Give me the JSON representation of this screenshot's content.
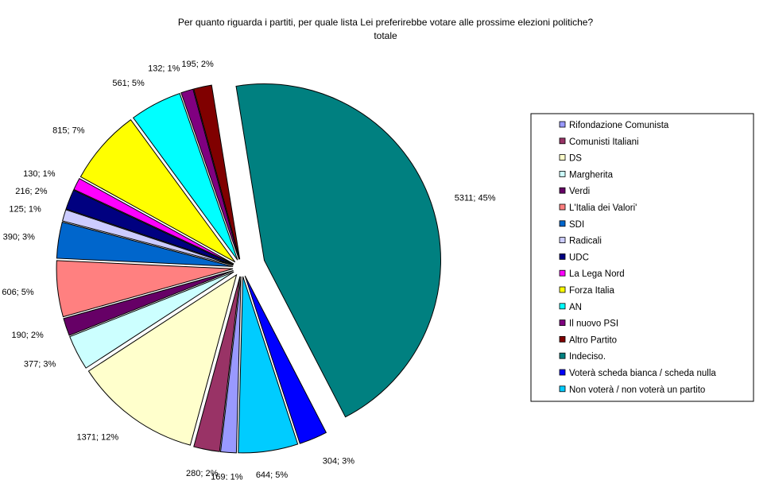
{
  "chart_data": {
    "type": "pie",
    "title": "Per quanto riguarda i partiti, per quale lista Lei preferirebbe votare alle prossime elezioni politiche?",
    "subtitle": "totale",
    "legend_position": "right",
    "slices": [
      {
        "name": "Rifondazione Comunista",
        "value": 169,
        "label": "169; 1%",
        "color": "#9999ff"
      },
      {
        "name": "Comunisti Italiani",
        "value": 280,
        "label": "280; 2%",
        "color": "#993366"
      },
      {
        "name": "DS",
        "value": 1371,
        "label": "1371; 12%",
        "color": "#ffffcc"
      },
      {
        "name": "Margherita",
        "value": 377,
        "label": "377; 3%",
        "color": "#ccffff"
      },
      {
        "name": "Verdi",
        "value": 190,
        "label": "190; 2%",
        "color": "#660066"
      },
      {
        "name": "L'Italia dei Valori'",
        "value": 606,
        "label": "606; 5%",
        "color": "#ff8080"
      },
      {
        "name": "SDI",
        "value": 390,
        "label": "390; 3%",
        "color": "#0066cc"
      },
      {
        "name": "Radicali",
        "value": 125,
        "label": "125; 1%",
        "color": "#ccccff"
      },
      {
        "name": "UDC",
        "value": 216,
        "label": "216; 2%",
        "color": "#000080"
      },
      {
        "name": "La Lega Nord",
        "value": 130,
        "label": "130; 1%",
        "color": "#ff00ff"
      },
      {
        "name": "Forza Italia",
        "value": 815,
        "label": "815; 7%",
        "color": "#ffff00"
      },
      {
        "name": "AN",
        "value": 561,
        "label": "561; 5%",
        "color": "#00ffff"
      },
      {
        "name": "Il nuovo PSI",
        "value": 132,
        "label": "132; 1%",
        "color": "#800080"
      },
      {
        "name": "Altro Partito",
        "value": 195,
        "label": "195; 2%",
        "color": "#800000"
      },
      {
        "name": "Indeciso.",
        "value": 5311,
        "label": "5311; 45%",
        "color": "#008080"
      },
      {
        "name": "Voterà scheda bianca / scheda nulla",
        "value": 304,
        "label": "304; 3%",
        "color": "#0000ff"
      },
      {
        "name": "Non voterà / non voterà un partito",
        "value": 644,
        "label": "644; 5%",
        "color": "#00ccff"
      }
    ]
  }
}
